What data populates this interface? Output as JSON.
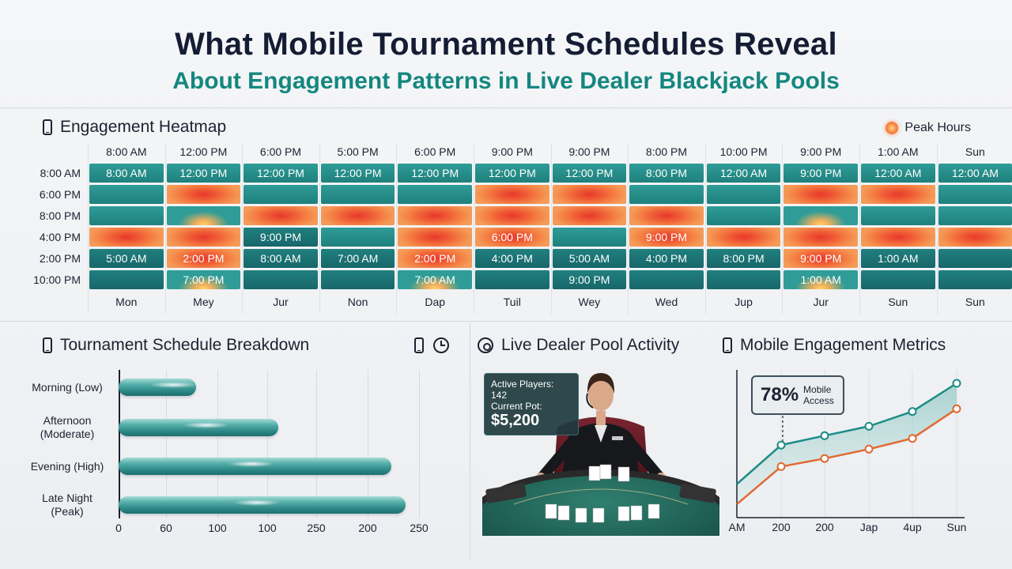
{
  "header": {
    "title": "What Mobile Tournament Schedules Reveal",
    "subtitle": "About Engagement Patterns in Live Dealer Blackjack Pools"
  },
  "heatmap": {
    "title": "Engagement Heatmap",
    "legend": "Peak Hours",
    "col_headers": [
      "8:00 AM",
      "12:00 PM",
      "6:00 PM",
      "5:00 PM",
      "6:00 PM",
      "9:00 PM",
      "9:00 PM",
      "8:00 PM",
      "10:00 PM",
      "9:00 PM",
      "1:00 AM",
      "Sun"
    ],
    "row_labels": [
      "8:00 AM",
      "6:00 PM",
      "8:00 PM",
      "4:00 PM",
      "2:00 PM",
      "10:00 PM"
    ],
    "col_footers": [
      "Mon",
      "Mey",
      "Jur",
      "Non",
      "Dap",
      "Tuil",
      "Wey",
      "Wed",
      "Jup",
      "Jur",
      "Sun",
      "Sun"
    ],
    "rows": [
      [
        [
          "8:00 AM",
          "cool"
        ],
        [
          "12:00 PM",
          "cool"
        ],
        [
          "12:00 PM",
          "cool"
        ],
        [
          "12:00 PM",
          "cool"
        ],
        [
          "12:00 PM",
          "cool"
        ],
        [
          "12:00 PM",
          "cool"
        ],
        [
          "12:00 PM",
          "cool"
        ],
        [
          "8:00 PM",
          "cool"
        ],
        [
          "12:00 AM",
          "cool"
        ],
        [
          "9:00 PM",
          "cool"
        ],
        [
          "12:00 AM",
          "cool"
        ],
        [
          "12:00 AM",
          "cool"
        ]
      ],
      [
        [
          "",
          "cool"
        ],
        [
          "",
          "hot"
        ],
        [
          "",
          "cool"
        ],
        [
          "",
          "cool"
        ],
        [
          "",
          "cool"
        ],
        [
          "",
          "hot"
        ],
        [
          "",
          "hot"
        ],
        [
          "",
          "cool"
        ],
        [
          "",
          "cool"
        ],
        [
          "",
          "hot"
        ],
        [
          "",
          "hot"
        ],
        [
          "",
          "cool"
        ]
      ],
      [
        [
          "",
          "cool"
        ],
        [
          "",
          "warm"
        ],
        [
          "",
          "hot"
        ],
        [
          "",
          "hot"
        ],
        [
          "",
          "hot"
        ],
        [
          "",
          "hot"
        ],
        [
          "",
          "hot"
        ],
        [
          "",
          "hot"
        ],
        [
          "",
          "cool"
        ],
        [
          "",
          "warm"
        ],
        [
          "",
          "cool"
        ],
        [
          "",
          "cool"
        ]
      ],
      [
        [
          "",
          "hot"
        ],
        [
          "",
          "hot"
        ],
        [
          "9:00 PM",
          "dark"
        ],
        [
          "",
          "cool"
        ],
        [
          "",
          "hot"
        ],
        [
          "6:00 PM",
          "hot"
        ],
        [
          "",
          "cool"
        ],
        [
          "9:00 PM",
          "hot"
        ],
        [
          "",
          "hot"
        ],
        [
          "",
          "hot"
        ],
        [
          "",
          "hot"
        ],
        [
          "",
          "hot"
        ]
      ],
      [
        [
          "5:00 AM",
          "dark"
        ],
        [
          "2:00 PM",
          "hot"
        ],
        [
          "8:00 AM",
          "dark"
        ],
        [
          "7:00 AM",
          "dark"
        ],
        [
          "2:00 PM",
          "hot"
        ],
        [
          "4:00 PM",
          "dark"
        ],
        [
          "5:00 AM",
          "dark"
        ],
        [
          "4:00 PM",
          "dark"
        ],
        [
          "8:00 PM",
          "dark"
        ],
        [
          "9:00 PM",
          "hot"
        ],
        [
          "1:00 AM",
          "dark"
        ],
        [
          "",
          "dark"
        ]
      ],
      [
        [
          "",
          "dark"
        ],
        [
          "7:00 PM",
          "warm"
        ],
        [
          "",
          "dark"
        ],
        [
          "",
          "dark"
        ],
        [
          "7:00 AM",
          "warm"
        ],
        [
          "",
          "dark"
        ],
        [
          "9:00 PM",
          "dark"
        ],
        [
          "",
          "dark"
        ],
        [
          "",
          "dark"
        ],
        [
          "1:00 AM",
          "warm"
        ],
        [
          "",
          "dark"
        ],
        [
          "",
          "dark"
        ]
      ]
    ]
  },
  "breakdown": {
    "title": "Tournament Schedule Breakdown",
    "axis_ticks": [
      "0",
      "60",
      "100",
      "100",
      "250",
      "200",
      "250"
    ]
  },
  "chart_data": [
    {
      "type": "bar",
      "title": "Tournament Schedule Breakdown",
      "categories": [
        "Morning (Low)",
        "Afternoon (Moderate)",
        "Evening (High)",
        "Late Night (Peak)"
      ],
      "values": [
        85,
        175,
        300,
        315
      ],
      "xlim": [
        0,
        330
      ],
      "orientation": "horizontal",
      "grid": true
    },
    {
      "type": "line",
      "title": "Mobile Engagement Metrics",
      "categories": [
        "AM",
        "200",
        "200",
        "Jap",
        "4up",
        "Sun"
      ],
      "series": [
        {
          "name": "",
          "values": [
            25,
            54,
            61,
            68,
            79,
            100
          ],
          "color": "#1d8c86"
        },
        {
          "name": "",
          "values": [
            10,
            38,
            44,
            51,
            59,
            81
          ],
          "color": "#e06a34"
        }
      ],
      "ylim": [
        0,
        110
      ],
      "grid": true
    }
  ],
  "dealer": {
    "title": "Live Dealer Pool Activity",
    "players_text": "Active Players: 142",
    "pot_label": "Current Pot:",
    "pot_value": "$5,200"
  },
  "metrics": {
    "title": "Mobile Engagement Metrics",
    "callout_value": "78%",
    "callout_line1": "Mobile",
    "callout_line2": "Access"
  },
  "colors": {
    "teal": "#1d8c86",
    "orange": "#e06a34",
    "hot": "#e8382a",
    "title": "#141d33",
    "subtitle": "#14877f"
  }
}
